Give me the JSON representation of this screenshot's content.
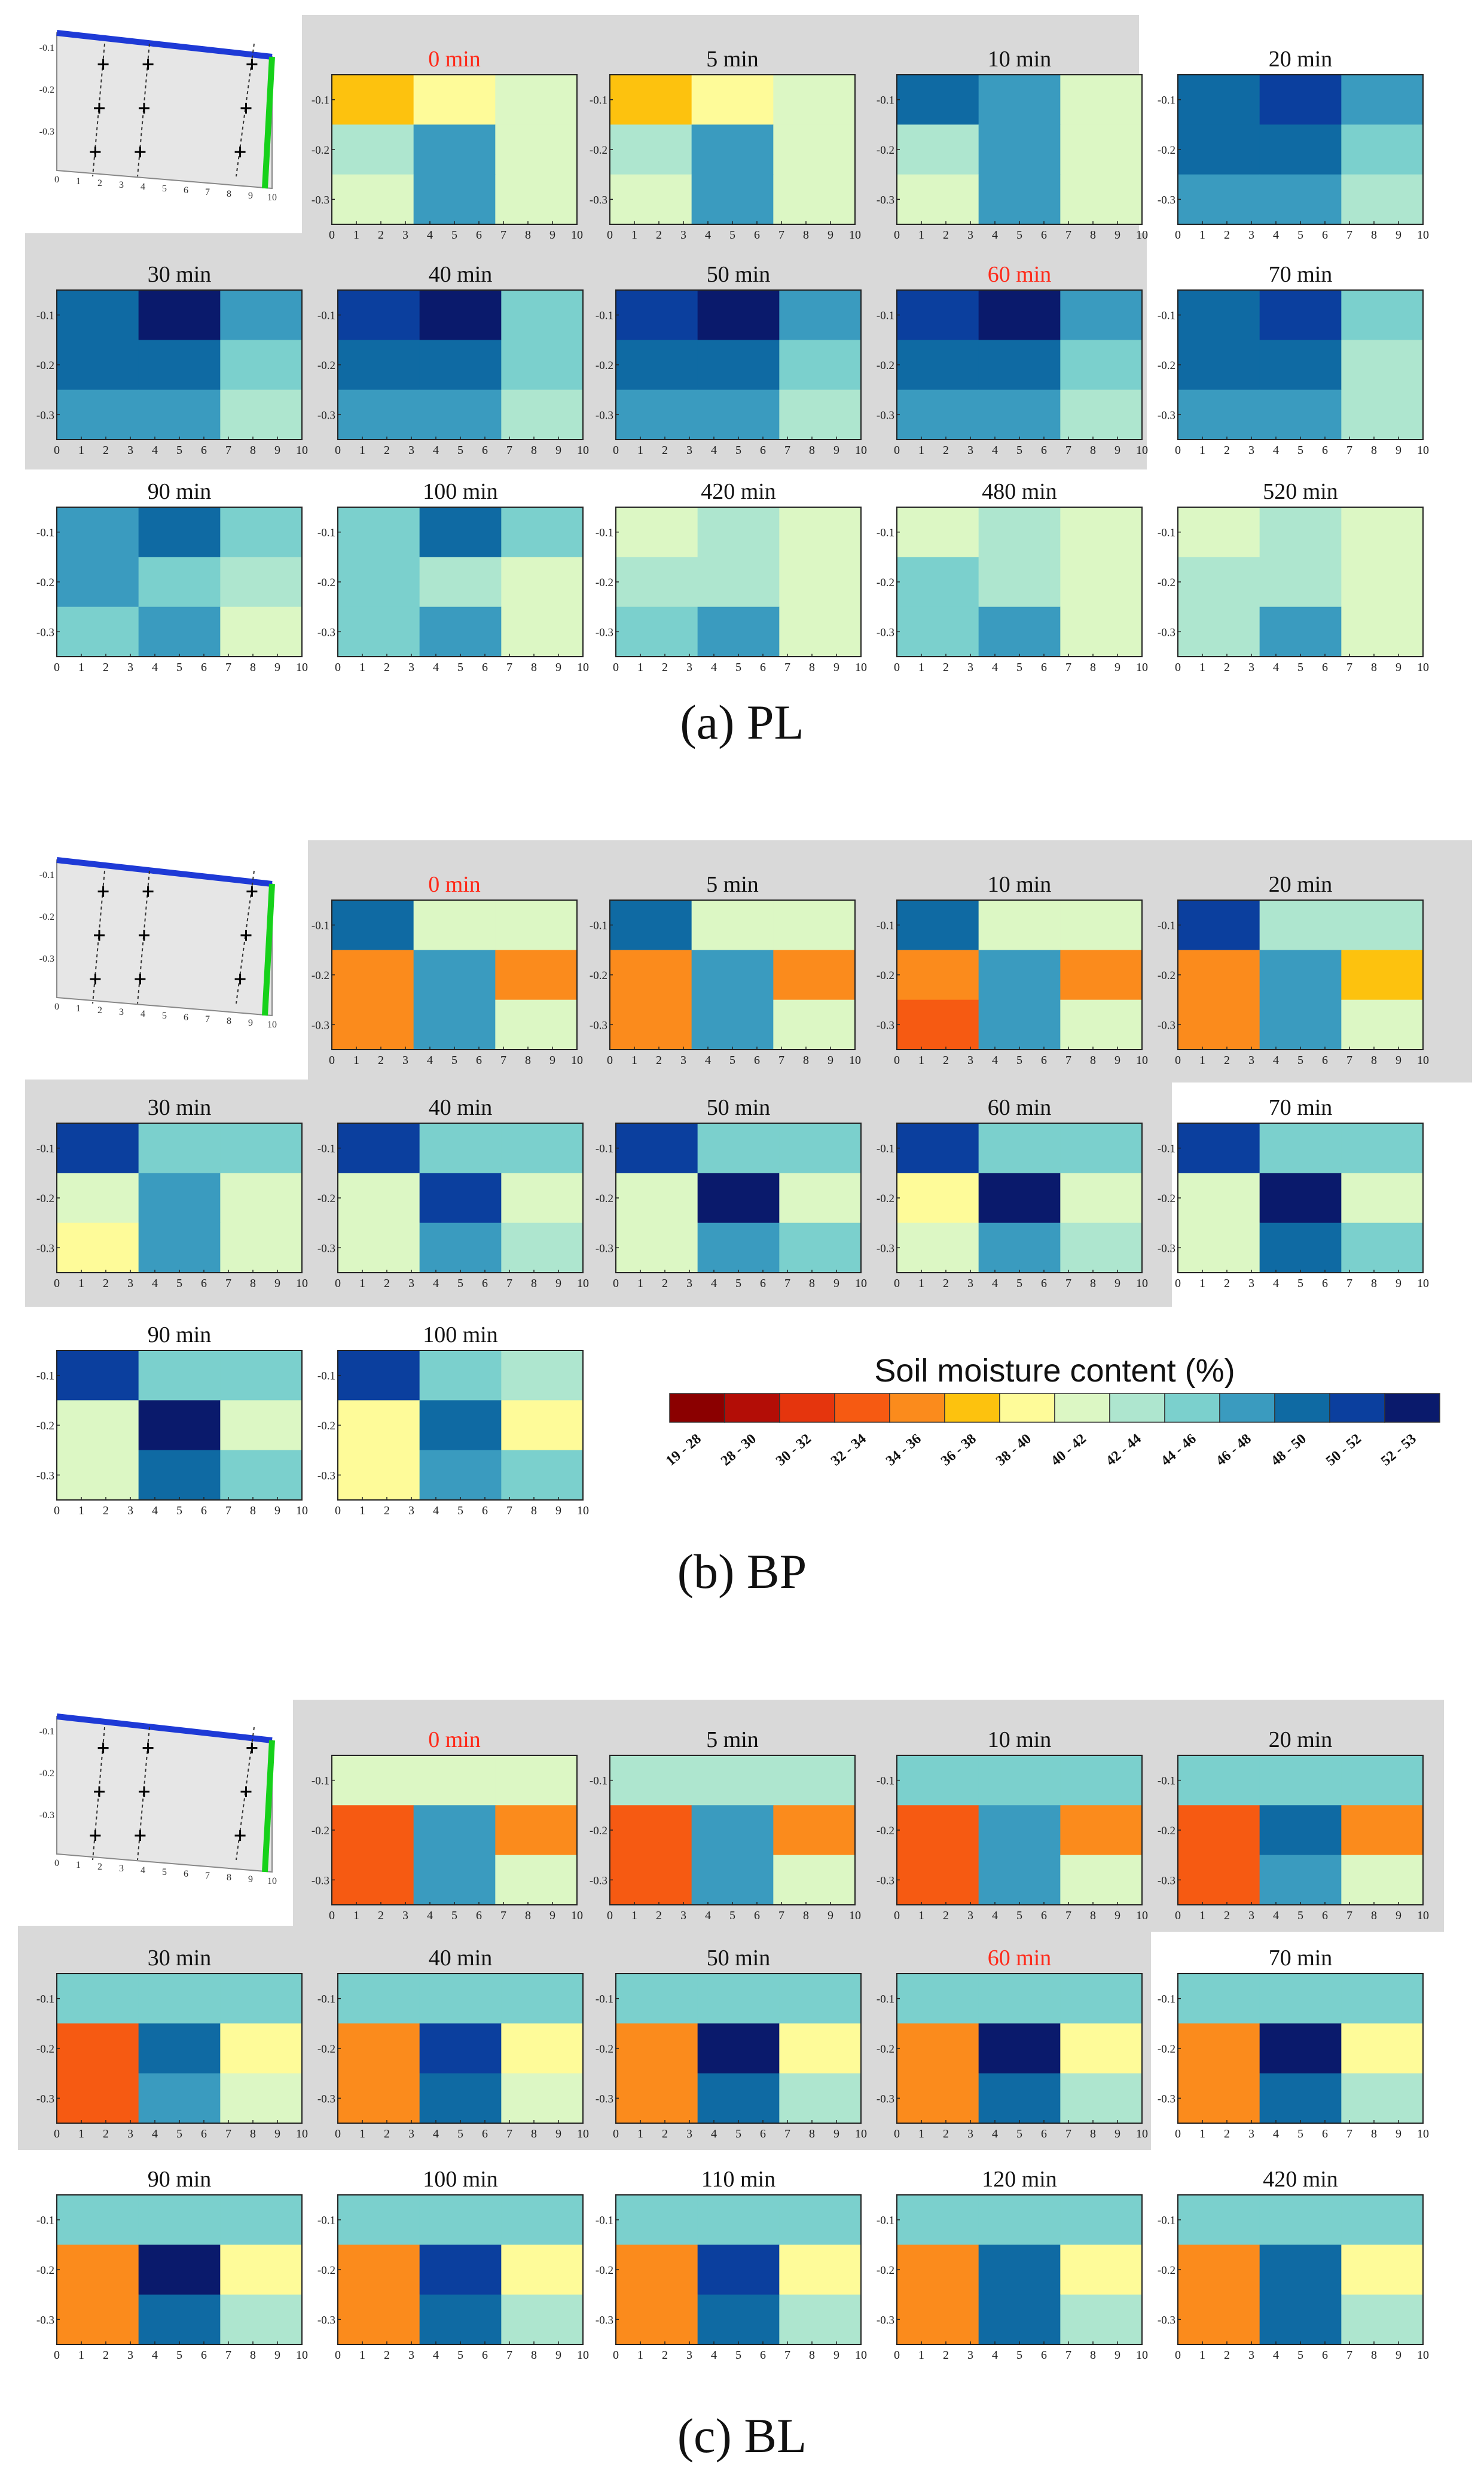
{
  "chart_data": {
    "type": "heatmap",
    "description_unit": "Soil moisture content (%)",
    "x_ticks": [
      "0",
      "1",
      "2",
      "3",
      "4",
      "5",
      "6",
      "7",
      "8",
      "9",
      "10"
    ],
    "y_ticks": [
      "-0.1",
      "-0.2",
      "-0.3"
    ],
    "legend": {
      "title": "Soil moisture content (%)",
      "classes": [
        {
          "label": "19 - 28",
          "color": "#8b0000"
        },
        {
          "label": "28 - 30",
          "color": "#b30d06"
        },
        {
          "label": "30 - 32",
          "color": "#e5350d"
        },
        {
          "label": "32 - 34",
          "color": "#f65a12"
        },
        {
          "label": "34 - 36",
          "color": "#fb8b1c"
        },
        {
          "label": "36 - 38",
          "color": "#fdc20e"
        },
        {
          "label": "38 - 40",
          "color": "#fefb99"
        },
        {
          "label": "40 - 42",
          "color": "#dcf7c4"
        },
        {
          "label": "42 - 44",
          "color": "#aee6cf"
        },
        {
          "label": "44 - 46",
          "color": "#7bd0cd"
        },
        {
          "label": "46 - 48",
          "color": "#3a9bbf"
        },
        {
          "label": "48 - 50",
          "color": "#0f6aa3"
        },
        {
          "label": "50 - 52",
          "color": "#0b3f9e"
        },
        {
          "label": "52 - 53",
          "color": "#0a1a6c"
        }
      ]
    },
    "panels": [
      {
        "label": "(a) PL",
        "grid": "v3",
        "inset_ticks_x": [
          "0",
          "1",
          "2",
          "3",
          "4",
          "5",
          "6",
          "7",
          "8",
          "9",
          "10"
        ],
        "inset_ticks_y": [
          "-0.1",
          "-0.2",
          "-0.3"
        ],
        "maps": [
          {
            "time": "0 min",
            "highlight": true,
            "cells": [
              [
                5,
                6,
                7
              ],
              [
                8,
                10,
                7
              ],
              [
                7,
                10,
                7
              ]
            ]
          },
          {
            "time": "5 min",
            "highlight": false,
            "cells": [
              [
                5,
                6,
                7
              ],
              [
                8,
                10,
                7
              ],
              [
                7,
                10,
                7
              ]
            ]
          },
          {
            "time": "10 min",
            "highlight": false,
            "cells": [
              [
                11,
                10,
                7
              ],
              [
                8,
                10,
                7
              ],
              [
                7,
                10,
                7
              ]
            ]
          },
          {
            "time": "20 min",
            "highlight": false,
            "cells": [
              [
                11,
                12,
                10
              ],
              [
                11,
                11,
                9
              ],
              [
                10,
                10,
                8
              ]
            ]
          },
          {
            "time": "30 min",
            "highlight": false,
            "cells": [
              [
                11,
                13,
                10
              ],
              [
                11,
                11,
                9
              ],
              [
                10,
                10,
                8
              ]
            ]
          },
          {
            "time": "40 min",
            "highlight": false,
            "cells": [
              [
                12,
                13,
                9
              ],
              [
                11,
                11,
                9
              ],
              [
                10,
                10,
                8
              ]
            ]
          },
          {
            "time": "50 min",
            "highlight": false,
            "cells": [
              [
                12,
                13,
                10
              ],
              [
                11,
                11,
                9
              ],
              [
                10,
                10,
                8
              ]
            ]
          },
          {
            "time": "60 min",
            "highlight": true,
            "cells": [
              [
                12,
                13,
                10
              ],
              [
                11,
                11,
                9
              ],
              [
                10,
                10,
                8
              ]
            ]
          },
          {
            "time": "70 min",
            "highlight": false,
            "cells": [
              [
                11,
                12,
                9
              ],
              [
                11,
                11,
                8
              ],
              [
                10,
                10,
                8
              ]
            ]
          },
          {
            "time": "90 min",
            "highlight": false,
            "cells": [
              [
                10,
                11,
                9
              ],
              [
                10,
                9,
                8
              ],
              [
                9,
                10,
                7
              ]
            ]
          },
          {
            "time": "100 min",
            "highlight": false,
            "cells": [
              [
                9,
                11,
                9
              ],
              [
                9,
                8,
                7
              ],
              [
                9,
                10,
                7
              ]
            ]
          },
          {
            "time": "420 min",
            "highlight": false,
            "cells": [
              [
                7,
                8,
                7
              ],
              [
                8,
                8,
                7
              ],
              [
                9,
                10,
                7
              ]
            ]
          },
          {
            "time": "480 min",
            "highlight": false,
            "cells": [
              [
                7,
                8,
                7
              ],
              [
                9,
                8,
                7
              ],
              [
                9,
                10,
                7
              ]
            ]
          },
          {
            "time": "520 min",
            "highlight": false,
            "cells": [
              [
                7,
                8,
                7
              ],
              [
                8,
                8,
                7
              ],
              [
                8,
                10,
                7
              ]
            ]
          }
        ]
      },
      {
        "label": "(b) BP",
        "grid": "h1v3",
        "inset_ticks_x": [
          "0",
          "1",
          "2",
          "3",
          "4",
          "5",
          "6",
          "7",
          "8",
          "9",
          "10"
        ],
        "inset_ticks_y": [
          "-0.1",
          "-0.2",
          "-0.3"
        ],
        "maps": [
          {
            "time": "0 min",
            "highlight": true,
            "cells": [
              [
                11,
                7,
                7
              ],
              [
                4,
                10,
                4
              ],
              [
                4,
                10,
                7
              ]
            ]
          },
          {
            "time": "5 min",
            "highlight": false,
            "cells": [
              [
                11,
                7,
                7
              ],
              [
                4,
                10,
                4
              ],
              [
                4,
                10,
                7
              ]
            ]
          },
          {
            "time": "10 min",
            "highlight": false,
            "cells": [
              [
                11,
                7,
                7
              ],
              [
                4,
                10,
                4
              ],
              [
                3,
                10,
                7
              ]
            ]
          },
          {
            "time": "20 min",
            "highlight": false,
            "cells": [
              [
                12,
                8,
                8
              ],
              [
                4,
                10,
                5
              ],
              [
                4,
                10,
                7
              ]
            ]
          },
          {
            "time": "30 min",
            "highlight": false,
            "cells": [
              [
                12,
                9,
                9
              ],
              [
                7,
                10,
                7
              ],
              [
                6,
                10,
                7
              ]
            ]
          },
          {
            "time": "40 min",
            "highlight": false,
            "cells": [
              [
                12,
                9,
                9
              ],
              [
                7,
                12,
                7
              ],
              [
                7,
                10,
                8
              ]
            ]
          },
          {
            "time": "50 min",
            "highlight": false,
            "cells": [
              [
                12,
                9,
                9
              ],
              [
                7,
                13,
                7
              ],
              [
                7,
                10,
                9
              ]
            ]
          },
          {
            "time": "60 min",
            "highlight": false,
            "cells": [
              [
                12,
                9,
                9
              ],
              [
                6,
                13,
                7
              ],
              [
                7,
                10,
                8
              ]
            ]
          },
          {
            "time": "70 min",
            "highlight": false,
            "cells": [
              [
                12,
                9,
                9
              ],
              [
                7,
                13,
                7
              ],
              [
                7,
                11,
                9
              ]
            ]
          },
          {
            "time": "90 min",
            "highlight": false,
            "cells": [
              [
                12,
                9,
                9
              ],
              [
                7,
                13,
                7
              ],
              [
                7,
                11,
                9
              ]
            ]
          },
          {
            "time": "100 min",
            "highlight": false,
            "cells": [
              [
                12,
                9,
                8
              ],
              [
                6,
                11,
                6
              ],
              [
                6,
                10,
                9
              ]
            ]
          }
        ]
      },
      {
        "label": "(c) BL",
        "grid": "h1v3",
        "inset_ticks_x": [
          "0",
          "1",
          "2",
          "3",
          "4",
          "5",
          "6",
          "7",
          "8",
          "9",
          "10"
        ],
        "inset_ticks_y": [
          "-0.1",
          "-0.2",
          "-0.3"
        ],
        "maps": [
          {
            "time": "0 min",
            "highlight": true,
            "cells": [
              [
                7,
                7,
                7
              ],
              [
                3,
                10,
                4
              ],
              [
                3,
                10,
                7
              ]
            ]
          },
          {
            "time": "5 min",
            "highlight": false,
            "cells": [
              [
                8,
                8,
                8
              ],
              [
                3,
                10,
                4
              ],
              [
                3,
                10,
                7
              ]
            ]
          },
          {
            "time": "10 min",
            "highlight": false,
            "cells": [
              [
                9,
                9,
                9
              ],
              [
                3,
                10,
                4
              ],
              [
                3,
                10,
                7
              ]
            ]
          },
          {
            "time": "20 min",
            "highlight": false,
            "cells": [
              [
                9,
                9,
                9
              ],
              [
                3,
                11,
                4
              ],
              [
                3,
                10,
                7
              ]
            ]
          },
          {
            "time": "30 min",
            "highlight": false,
            "cells": [
              [
                9,
                9,
                9
              ],
              [
                3,
                11,
                6
              ],
              [
                3,
                10,
                7
              ]
            ]
          },
          {
            "time": "40 min",
            "highlight": false,
            "cells": [
              [
                9,
                9,
                9
              ],
              [
                4,
                12,
                6
              ],
              [
                4,
                11,
                7
              ]
            ]
          },
          {
            "time": "50 min",
            "highlight": false,
            "cells": [
              [
                9,
                9,
                9
              ],
              [
                4,
                13,
                6
              ],
              [
                4,
                11,
                8
              ]
            ]
          },
          {
            "time": "60 min",
            "highlight": true,
            "cells": [
              [
                9,
                9,
                9
              ],
              [
                4,
                13,
                6
              ],
              [
                4,
                11,
                8
              ]
            ]
          },
          {
            "time": "70 min",
            "highlight": false,
            "cells": [
              [
                9,
                9,
                9
              ],
              [
                4,
                13,
                6
              ],
              [
                4,
                11,
                8
              ]
            ]
          },
          {
            "time": "90 min",
            "highlight": false,
            "cells": [
              [
                9,
                9,
                9
              ],
              [
                4,
                13,
                6
              ],
              [
                4,
                11,
                8
              ]
            ]
          },
          {
            "time": "100 min",
            "highlight": false,
            "cells": [
              [
                9,
                9,
                9
              ],
              [
                4,
                12,
                6
              ],
              [
                4,
                11,
                8
              ]
            ]
          },
          {
            "time": "110 min",
            "highlight": false,
            "cells": [
              [
                9,
                9,
                9
              ],
              [
                4,
                12,
                6
              ],
              [
                4,
                11,
                8
              ]
            ]
          },
          {
            "time": "120 min",
            "highlight": false,
            "cells": [
              [
                9,
                9,
                9
              ],
              [
                4,
                11,
                6
              ],
              [
                4,
                11,
                8
              ]
            ]
          },
          {
            "time": "420 min",
            "highlight": false,
            "cells": [
              [
                9,
                9,
                9
              ],
              [
                4,
                11,
                6
              ],
              [
                4,
                11,
                8
              ]
            ]
          }
        ]
      }
    ]
  }
}
